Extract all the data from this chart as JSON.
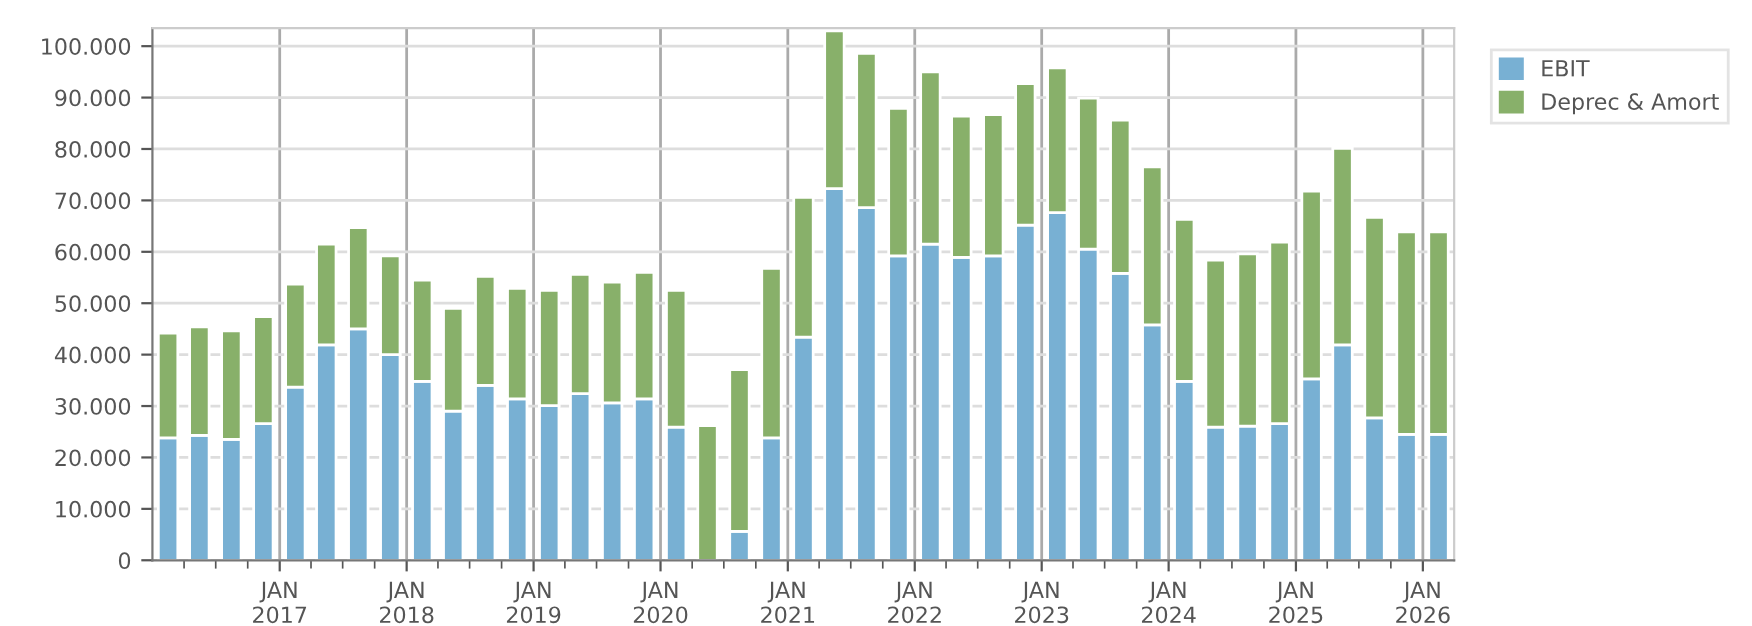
{
  "chart_data": {
    "type": "bar",
    "stacked": true,
    "x": [
      "2016-02-15",
      "2016-05-15",
      "2016-08-15",
      "2016-11-15",
      "2017-02-15",
      "2017-05-15",
      "2017-08-15",
      "2017-11-15",
      "2018-02-15",
      "2018-05-15",
      "2018-08-15",
      "2018-11-15",
      "2019-02-15",
      "2019-05-15",
      "2019-08-15",
      "2019-11-15",
      "2020-02-15",
      "2020-05-15",
      "2020-08-15",
      "2020-11-15",
      "2021-02-15",
      "2021-05-15",
      "2021-08-15",
      "2021-11-15",
      "2022-02-15",
      "2022-05-15",
      "2022-08-15",
      "2022-11-15",
      "2023-02-15",
      "2023-05-15",
      "2023-08-15",
      "2023-11-15",
      "2024-02-15",
      "2024-05-15",
      "2024-08-15",
      "2024-11-15",
      "2025-02-15",
      "2025-05-15",
      "2025-08-15",
      "2025-11-15",
      "2026-02-15"
    ],
    "series": [
      {
        "name": "EBIT",
        "color": "#78b0d3",
        "values": [
          23800,
          24300,
          23500,
          26600,
          33700,
          41900,
          45000,
          40000,
          34800,
          29000,
          34000,
          31400,
          30100,
          32400,
          30600,
          31400,
          25900,
          0,
          5600,
          23800,
          43400,
          72300,
          68600,
          59200,
          61500,
          58900,
          59200,
          65200,
          67600,
          60500,
          55800,
          45800,
          34800,
          25900,
          26100,
          26600,
          35300,
          41900,
          27700,
          24500,
          24500
        ]
      },
      {
        "name": "Deprec & Amort",
        "color": "#88b06a",
        "values": [
          20400,
          21100,
          21100,
          20800,
          20000,
          19600,
          19700,
          19200,
          19700,
          20000,
          21200,
          21500,
          22400,
          23200,
          23500,
          24600,
          26600,
          26200,
          31500,
          33000,
          27200,
          30700,
          30000,
          28700,
          33500,
          27500,
          27500,
          27500,
          28200,
          29400,
          29800,
          30700,
          31500,
          32500,
          33500,
          35300,
          36500,
          38200,
          39000,
          39400,
          39400
        ]
      }
    ],
    "ylim": [
      0,
      103500
    ],
    "yticks": [
      {
        "value": 0,
        "label": "0"
      },
      {
        "value": 10000,
        "label": "10.000"
      },
      {
        "value": 20000,
        "label": "20.000"
      },
      {
        "value": 30000,
        "label": "30.000"
      },
      {
        "value": 40000,
        "label": "40.000"
      },
      {
        "value": 50000,
        "label": "50.000"
      },
      {
        "value": 60000,
        "label": "60.000"
      },
      {
        "value": 70000,
        "label": "70.000"
      },
      {
        "value": 80000,
        "label": "80.000"
      },
      {
        "value": 90000,
        "label": "90.000"
      },
      {
        "value": 100000,
        "label": "100.000"
      }
    ],
    "xlim": [
      "2016-01-01",
      "2026-04-01"
    ],
    "xticks": [
      {
        "value": "2016-04-01",
        "label": null
      },
      {
        "value": "2016-07-01",
        "label": null
      },
      {
        "value": "2016-10-01",
        "label": null
      },
      {
        "value": "2017-01-01",
        "label": "JAN\n2017"
      },
      {
        "value": "2017-04-01",
        "label": null
      },
      {
        "value": "2017-07-01",
        "label": null
      },
      {
        "value": "2017-10-01",
        "label": null
      },
      {
        "value": "2018-01-01",
        "label": "JAN\n2018"
      },
      {
        "value": "2018-04-01",
        "label": null
      },
      {
        "value": "2018-07-01",
        "label": null
      },
      {
        "value": "2018-10-01",
        "label": null
      },
      {
        "value": "2019-01-01",
        "label": "JAN\n2019"
      },
      {
        "value": "2019-04-01",
        "label": null
      },
      {
        "value": "2019-07-01",
        "label": null
      },
      {
        "value": "2019-10-01",
        "label": null
      },
      {
        "value": "2020-01-01",
        "label": "JAN\n2020"
      },
      {
        "value": "2020-04-01",
        "label": null
      },
      {
        "value": "2020-07-01",
        "label": null
      },
      {
        "value": "2020-10-01",
        "label": null
      },
      {
        "value": "2021-01-01",
        "label": "JAN\n2021"
      },
      {
        "value": "2021-04-01",
        "label": null
      },
      {
        "value": "2021-07-01",
        "label": null
      },
      {
        "value": "2021-10-01",
        "label": null
      },
      {
        "value": "2022-01-01",
        "label": "JAN\n2022"
      },
      {
        "value": "2022-04-01",
        "label": null
      },
      {
        "value": "2022-07-01",
        "label": null
      },
      {
        "value": "2022-10-01",
        "label": null
      },
      {
        "value": "2023-01-01",
        "label": "JAN\n2023"
      },
      {
        "value": "2023-04-01",
        "label": null
      },
      {
        "value": "2023-07-01",
        "label": null
      },
      {
        "value": "2023-10-01",
        "label": null
      },
      {
        "value": "2024-01-01",
        "label": "JAN\n2024"
      },
      {
        "value": "2024-04-01",
        "label": null
      },
      {
        "value": "2024-07-01",
        "label": null
      },
      {
        "value": "2024-10-01",
        "label": null
      },
      {
        "value": "2025-01-01",
        "label": "JAN\n2025"
      },
      {
        "value": "2025-04-01",
        "label": null
      },
      {
        "value": "2025-07-01",
        "label": null
      },
      {
        "value": "2025-10-01",
        "label": null
      },
      {
        "value": "2026-01-01",
        "label": "JAN\n2026"
      }
    ],
    "grid": true,
    "legend": "right"
  }
}
